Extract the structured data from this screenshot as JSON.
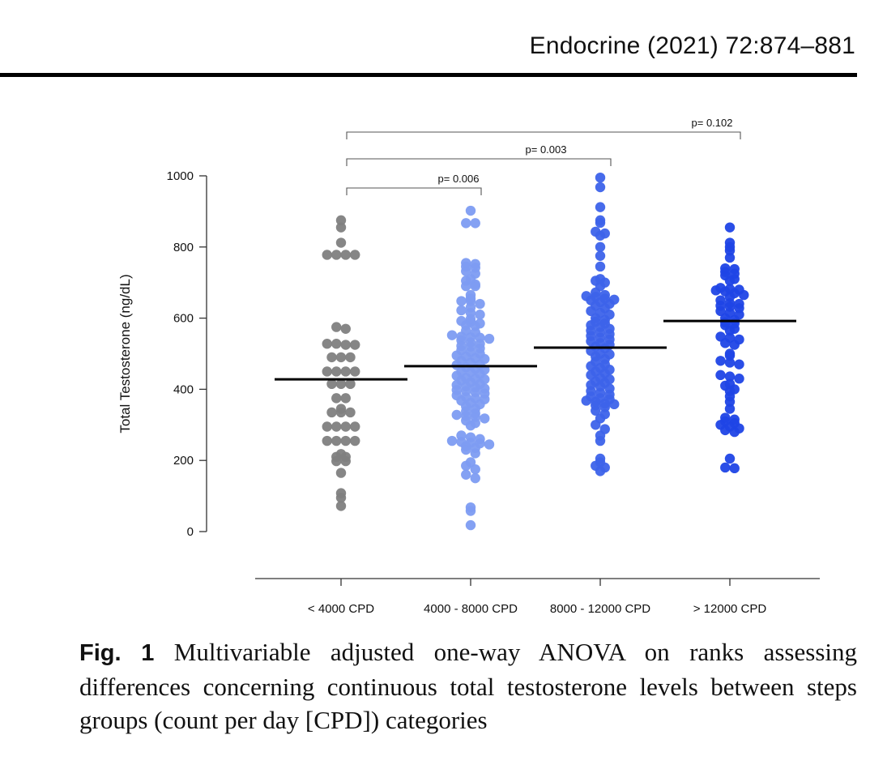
{
  "header": {
    "journal": "Endocrine (2021) 72:874–881"
  },
  "caption": {
    "label": "Fig. 1",
    "text": " Multivariable adjusted one-way ANOVA on ranks assessing differences concerning continuous total testosterone levels between steps groups (count per day [CPD]) categories"
  },
  "chart_data": {
    "type": "scatter",
    "subtype": "dot-plot with mean lines",
    "ylabel": "Total Testosterone (ng/dL)",
    "ylim": [
      0,
      1000
    ],
    "yticks": [
      "0",
      "200",
      "400",
      "600",
      "800",
      "1000"
    ],
    "categories": [
      "< 4000 CPD",
      "4000 - 8000 CPD",
      "8000 - 12000 CPD",
      "> 12000 CPD"
    ],
    "colors": [
      "#7f7f7f",
      "#7d9cf2",
      "#3d63ea",
      "#1f45e6"
    ],
    "means": [
      428,
      465,
      517,
      592
    ],
    "comparisons": [
      {
        "from": 0,
        "to": 1,
        "label": "p= 0.006"
      },
      {
        "from": 0,
        "to": 2,
        "label": "p= 0.003"
      },
      {
        "from": 0,
        "to": 3,
        "label": "p= 0.102"
      }
    ],
    "series": [
      {
        "values": [
          875,
          855,
          812,
          778,
          778,
          778,
          778,
          575,
          570,
          528,
          528,
          525,
          525,
          490,
          490,
          490,
          450,
          450,
          450,
          450,
          415,
          415,
          415,
          375,
          375,
          345,
          335,
          335,
          335,
          295,
          295,
          295,
          295,
          255,
          255,
          255,
          255,
          218,
          210,
          210,
          198,
          198,
          165,
          108,
          95,
          72
        ]
      },
      {
        "values": [
          902,
          867,
          867,
          755,
          752,
          745,
          742,
          732,
          725,
          710,
          705,
          695,
          690,
          690,
          665,
          655,
          648,
          648,
          640,
          630,
          622,
          615,
          610,
          598,
          592,
          590,
          585,
          580,
          578,
          565,
          560,
          552,
          548,
          546,
          545,
          542,
          538,
          532,
          528,
          522,
          520,
          515,
          510,
          505,
          500,
          495,
          492,
          488,
          485,
          480,
          475,
          470,
          468,
          462,
          458,
          455,
          450,
          448,
          443,
          438,
          432,
          430,
          428,
          425,
          420,
          415,
          412,
          408,
          405,
          402,
          398,
          395,
          392,
          388,
          383,
          378,
          375,
          372,
          368,
          362,
          358,
          352,
          345,
          338,
          332,
          328,
          325,
          322,
          318,
          312,
          305,
          298,
          270,
          265,
          260,
          255,
          252,
          250,
          248,
          245,
          240,
          235,
          230,
          220,
          195,
          185,
          175,
          160,
          150,
          68,
          58,
          18
        ]
      },
      {
        "values": [
          995,
          968,
          912,
          875,
          868,
          843,
          838,
          832,
          800,
          775,
          745,
          710,
          705,
          700,
          690,
          672,
          665,
          662,
          660,
          655,
          652,
          650,
          645,
          640,
          635,
          628,
          620,
          615,
          610,
          600,
          595,
          590,
          585,
          580,
          575,
          570,
          565,
          560,
          555,
          550,
          545,
          540,
          535,
          530,
          525,
          520,
          515,
          508,
          500,
          498,
          492,
          485,
          478,
          470,
          465,
          460,
          455,
          450,
          445,
          440,
          432,
          428,
          422,
          418,
          412,
          408,
          402,
          395,
          390,
          385,
          380,
          375,
          372,
          368,
          365,
          360,
          358,
          355,
          350,
          340,
          330,
          318,
          300,
          288,
          270,
          255,
          205,
          195,
          185,
          180,
          170
        ]
      },
      {
        "values": [
          855,
          812,
          800,
          790,
          770,
          740,
          738,
          730,
          725,
          720,
          710,
          705,
          685,
          682,
          680,
          678,
          675,
          670,
          665,
          660,
          650,
          642,
          640,
          635,
          632,
          628,
          620,
          615,
          610,
          600,
          595,
          588,
          585,
          580,
          570,
          565,
          548,
          545,
          540,
          530,
          525,
          500,
          495,
          480,
          475,
          470,
          440,
          436,
          430,
          415,
          410,
          400,
          395,
          380,
          365,
          345,
          320,
          315,
          310,
          305,
          300,
          295,
          290,
          285,
          280,
          205,
          180,
          178
        ]
      }
    ]
  }
}
